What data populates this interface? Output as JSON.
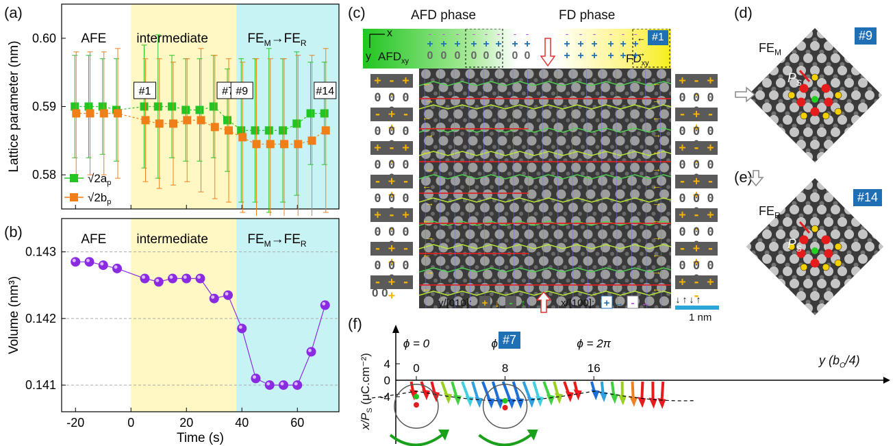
{
  "panels": {
    "a": "(a)",
    "b": "(b)",
    "c": "(c)",
    "d": "(d)",
    "e": "(e)",
    "f": "(f)"
  },
  "phases": {
    "afe": "AFE",
    "intermediate": "intermediate",
    "fe": "FE",
    "fe_m_sub": "M",
    "fe_r_sub": "R",
    "arrow": "→"
  },
  "colors": {
    "green": "#22c522",
    "orange": "#f07f1a",
    "purple": "#8a2be2",
    "yellow_bg": "#fff8c4",
    "cyan_bg": "#c8f3f5",
    "badge": "#1f6fb5"
  },
  "chart_a": {
    "ylabel": "Lattice parameter (nm)",
    "yticks": [
      "0.58",
      "0.59",
      "0.60"
    ],
    "ylim": [
      0.575,
      0.605
    ],
    "xlim": [
      -25,
      75
    ],
    "markers": [
      "#1",
      "#7",
      "#9",
      "#14"
    ],
    "marker_x": [
      5,
      35,
      40,
      70
    ],
    "legend": [
      {
        "name": "√2a",
        "sub": "p"
      },
      {
        "name": "√2b",
        "sub": "p"
      }
    ]
  },
  "chart_b": {
    "ylabel": "Volume (nm³)",
    "yticks": [
      "0.141",
      "0.142",
      "0.143"
    ],
    "ylim": [
      0.1406,
      0.1435
    ],
    "xlabel": "Time (s)",
    "xticks": [
      "-20",
      "0",
      "20",
      "40",
      "60"
    ],
    "xtick_values": [
      -20,
      0,
      20,
      40,
      60
    ]
  },
  "chart_data": [
    {
      "type": "scatter",
      "title": "",
      "xlim": [
        -25,
        75
      ],
      "ylim": [
        0.575,
        0.605
      ],
      "series": [
        {
          "name": "√2ap",
          "x": [
            -20,
            -15,
            -10,
            -5,
            5,
            10,
            15,
            20,
            25,
            30,
            35,
            40,
            45,
            50,
            55,
            60,
            65,
            70
          ],
          "values": [
            0.59,
            0.59,
            0.59,
            0.5895,
            0.59,
            0.59,
            0.59,
            0.5895,
            0.5895,
            0.59,
            0.588,
            0.5865,
            0.5865,
            0.5865,
            0.5865,
            0.5875,
            0.589,
            0.589
          ],
          "err": [
            0.0075,
            0.0075,
            0.007,
            0.0075,
            0.009,
            0.0105,
            0.0075,
            0.0075,
            0.0075,
            0.0075,
            0.0075,
            0.0105,
            0.0105,
            0.012,
            0.0105,
            0.0105,
            0.0075,
            0.0075
          ]
        },
        {
          "name": "√2bp",
          "x": [
            -20,
            -15,
            -10,
            -5,
            5,
            10,
            15,
            20,
            25,
            30,
            35,
            40,
            45,
            50,
            55,
            60,
            65,
            70
          ],
          "values": [
            0.589,
            0.589,
            0.589,
            0.589,
            0.588,
            0.5875,
            0.5875,
            0.588,
            0.588,
            0.587,
            0.5865,
            0.5855,
            0.5845,
            0.5845,
            0.5845,
            0.5845,
            0.585,
            0.5865
          ],
          "err": [
            0.009,
            0.009,
            0.009,
            0.0095,
            0.009,
            0.0095,
            0.009,
            0.009,
            0.0105,
            0.0105,
            0.0105,
            0.011,
            0.0125,
            0.0125,
            0.0125,
            0.013,
            0.0125,
            0.012
          ]
        }
      ]
    },
    {
      "type": "line",
      "title": "",
      "x": [
        -20,
        -15,
        -10,
        -5,
        5,
        10,
        15,
        20,
        25,
        30,
        35,
        40,
        45,
        50,
        55,
        60,
        65,
        70
      ],
      "series": [
        {
          "name": "Volume",
          "values": [
            0.14285,
            0.14285,
            0.1428,
            0.14275,
            0.1426,
            0.14255,
            0.1426,
            0.1426,
            0.1426,
            0.1423,
            0.14235,
            0.14185,
            0.1411,
            0.141,
            0.141,
            0.141,
            0.1415,
            0.1422
          ]
        }
      ],
      "ylim": [
        0.1406,
        0.1435
      ]
    },
    {
      "type": "scatter",
      "title": "",
      "xlabel": "y (b",
      "ylabel": "x/P",
      "xticks": [
        "0",
        "8",
        "16"
      ],
      "yticks": [
        "4",
        "0",
        "-4"
      ],
      "phi_labels": [
        "ϕ = 0",
        "ϕ = π",
        "ϕ = 2π"
      ],
      "note": "",
      "ylim": [
        -6,
        5
      ]
    }
  ],
  "panel_c": {
    "afd_title": "AFD phase",
    "fd_title": "FD phase",
    "axes_x": "x",
    "axes_y": "y",
    "afd_xy": "AFD",
    "fd_xy": "FD",
    "xy_sub": "xy",
    "badge": "#1",
    "left_rows": [
      "+ - + -",
      "0 0 0 0",
      "- + - +",
      "0 0 0 0",
      "+ - + -",
      "0 0 0 0",
      "- + - +",
      "0 0 0 0",
      "+ - + -",
      "0 0 0 0",
      "- + - +",
      "0 0 0 0",
      "- + - +"
    ],
    "right_rows": [
      "+ - + -",
      "0 0 0 0",
      "- + - +",
      "0 0 0 0",
      "+ - + -",
      "0 0 0 0",
      "- + - +",
      "0 0 0 0",
      "+ - + -",
      "0 0 0 0",
      "- + - +",
      "0 0 0 0",
      "+ - + -"
    ],
    "bottom_left": "0 0",
    "legend_y": "y/[010]:",
    "legend_x": "x/[100]:",
    "scalebar": "1 nm",
    "plus": "+",
    "minus": "-"
  },
  "panel_d": {
    "badge": "#9",
    "phase": "FE",
    "sub": "M",
    "ps": "P",
    "ps_sub": "S"
  },
  "panel_e": {
    "badge": "#14",
    "phase": "FE",
    "sub": "R",
    "ps": "P",
    "ps_sub": "S"
  },
  "panel_f": {
    "badge": "#7",
    "xlabel": "y (b",
    "xlabel_sub": "O",
    "xlabel_end": "/4)",
    "ylabel": "x/P",
    "ylabel_sub": "S",
    "ylabel_end": " (μC.cm⁻²)"
  }
}
